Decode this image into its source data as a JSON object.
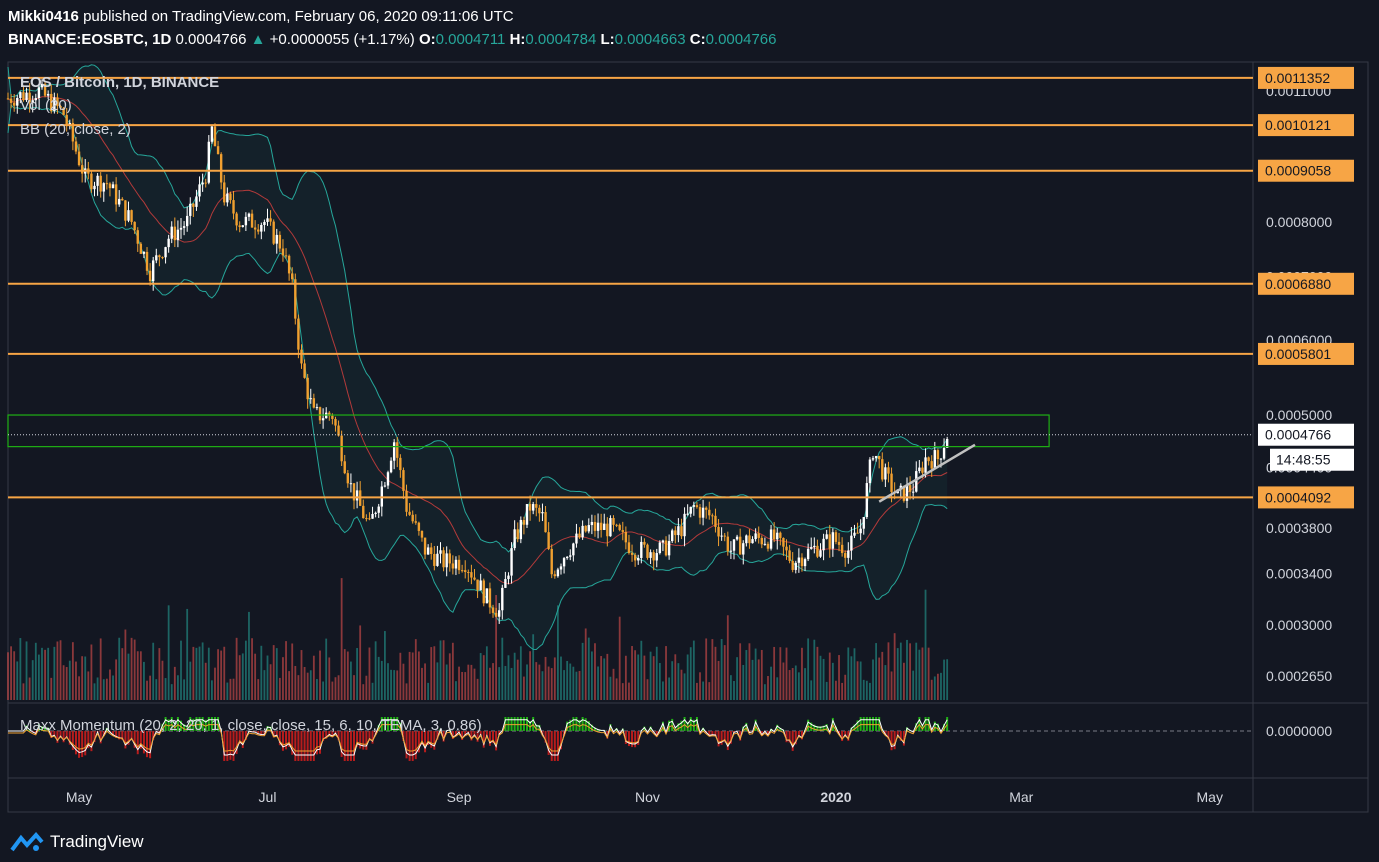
{
  "header": {
    "publisher": "Mikki0416",
    "published_text": "published on TradingView.com, February 06, 2020 09:11:06 UTC",
    "symbol": "BINANCE:EOSBTC, 1D",
    "last": "0.0004766",
    "arrow": "▲",
    "change": "+0.0000055 (+1.17%)",
    "o_label": "O:",
    "o_value": "0.0004711",
    "h_label": "H:",
    "h_value": "0.0004784",
    "l_label": "L:",
    "l_value": "0.0004663",
    "c_label": "C:",
    "c_value": "0.0004766"
  },
  "legend": {
    "title": "EOS / Bitcoin, 1D, BINANCE",
    "vol": "Vol (20)",
    "bb": "BB (20, close, 2)",
    "indicator": "Maxx Momentum (20, 2, 20, 1, close, close, 15, 6, 10, TEMA, 3, 0.86)"
  },
  "footer": {
    "brand": "TradingView"
  },
  "colors": {
    "background": "#131722",
    "level": "#f7a545",
    "level_label_bg": "#f7a545",
    "zone": "#1fb014",
    "up_candle": "#ffffff",
    "down_candle": "#f0a030",
    "bb": "#26a69a",
    "basis": "#b23a3a",
    "vol_up": "#26a69a",
    "vol_down": "#ef5350"
  },
  "chart_data": {
    "type": "candlestick",
    "symbol": "EOSBTC",
    "timeframe": "1D",
    "exchange": "BINANCE",
    "x_ticks": [
      "May",
      "Jul",
      "Sep",
      "Nov",
      "2020",
      "Mar",
      "May"
    ],
    "y_ticks": [
      "0.0011000",
      "0.0008000",
      "0.0007000",
      "0.0006000",
      "0.0005000",
      "0.0004400",
      "0.0003800",
      "0.0003400",
      "0.0003000",
      "0.0002650"
    ],
    "y_scale": "log",
    "ylim": [
      0.00025,
      0.00118
    ],
    "horizontal_levels": [
      0.0011352,
      0.0010121,
      0.0009058,
      0.000688,
      0.0005801,
      0.0004092
    ],
    "level_labels": [
      "0.0011352",
      "0.0010121",
      "0.0009058",
      "0.0006880",
      "0.0005801",
      "0.0004092"
    ],
    "zone": {
      "low": 0.000463,
      "high": 0.0005,
      "from": "2019-04-08",
      "to": "2020-03-10"
    },
    "last_price": 0.0004766,
    "last_price_label": "0.0004766",
    "countdown": "14:48:55",
    "trendline": {
      "from": [
        "2020-01-15",
        0.000405
      ],
      "to": [
        "2020-02-15",
        0.000465
      ]
    },
    "close_path": [
      [
        "2019-04-08",
        0.00108
      ],
      [
        "2019-04-18",
        0.0011
      ],
      [
        "2019-04-26",
        0.00104
      ],
      [
        "2019-05-03",
        0.00089
      ],
      [
        "2019-05-10",
        0.00088
      ],
      [
        "2019-05-18",
        0.0008
      ],
      [
        "2019-05-24",
        0.00071
      ],
      [
        "2019-05-30",
        0.00077
      ],
      [
        "2019-06-05",
        0.0008
      ],
      [
        "2019-06-11",
        0.0009
      ],
      [
        "2019-06-13",
        0.001
      ],
      [
        "2019-06-17",
        0.00085
      ],
      [
        "2019-06-22",
        0.0008
      ],
      [
        "2019-06-30",
        0.0008
      ],
      [
        "2019-07-06",
        0.00075
      ],
      [
        "2019-07-09",
        0.00068
      ],
      [
        "2019-07-12",
        0.00056
      ],
      [
        "2019-07-16",
        0.0005
      ],
      [
        "2019-07-22",
        0.0005
      ],
      [
        "2019-07-28",
        0.00042
      ],
      [
        "2019-08-03",
        0.00038
      ],
      [
        "2019-08-08",
        0.00043
      ],
      [
        "2019-08-11",
        0.00047
      ],
      [
        "2019-08-15",
        0.0004
      ],
      [
        "2019-08-21",
        0.00036
      ],
      [
        "2019-08-27",
        0.00035
      ],
      [
        "2019-09-03",
        0.00035
      ],
      [
        "2019-09-10",
        0.00032
      ],
      [
        "2019-09-14",
        0.00031
      ],
      [
        "2019-09-19",
        0.00037
      ],
      [
        "2019-09-24",
        0.0004
      ],
      [
        "2019-09-28",
        0.00039
      ],
      [
        "2019-10-01",
        0.00034
      ],
      [
        "2019-10-06",
        0.00036
      ],
      [
        "2019-10-13",
        0.00038
      ],
      [
        "2019-10-20",
        0.00038
      ],
      [
        "2019-10-28",
        0.00036
      ],
      [
        "2019-11-06",
        0.00036
      ],
      [
        "2019-11-12",
        0.00038
      ],
      [
        "2019-11-16",
        0.0004
      ],
      [
        "2019-11-22",
        0.00039
      ],
      [
        "2019-11-28",
        0.00036
      ],
      [
        "2019-12-04",
        0.00037
      ],
      [
        "2019-12-12",
        0.00037
      ],
      [
        "2019-12-18",
        0.00035
      ],
      [
        "2019-12-24",
        0.00036
      ],
      [
        "2019-12-31",
        0.00037
      ],
      [
        "2020-01-05",
        0.00036
      ],
      [
        "2020-01-09",
        0.00038
      ],
      [
        "2020-01-13",
        0.00046
      ],
      [
        "2020-01-17",
        0.00043
      ],
      [
        "2020-01-21",
        0.00041
      ],
      [
        "2020-01-26",
        0.00042
      ],
      [
        "2020-01-30",
        0.00045
      ],
      [
        "2020-02-03",
        0.00045
      ],
      [
        "2020-02-06",
        0.0004766
      ]
    ]
  }
}
